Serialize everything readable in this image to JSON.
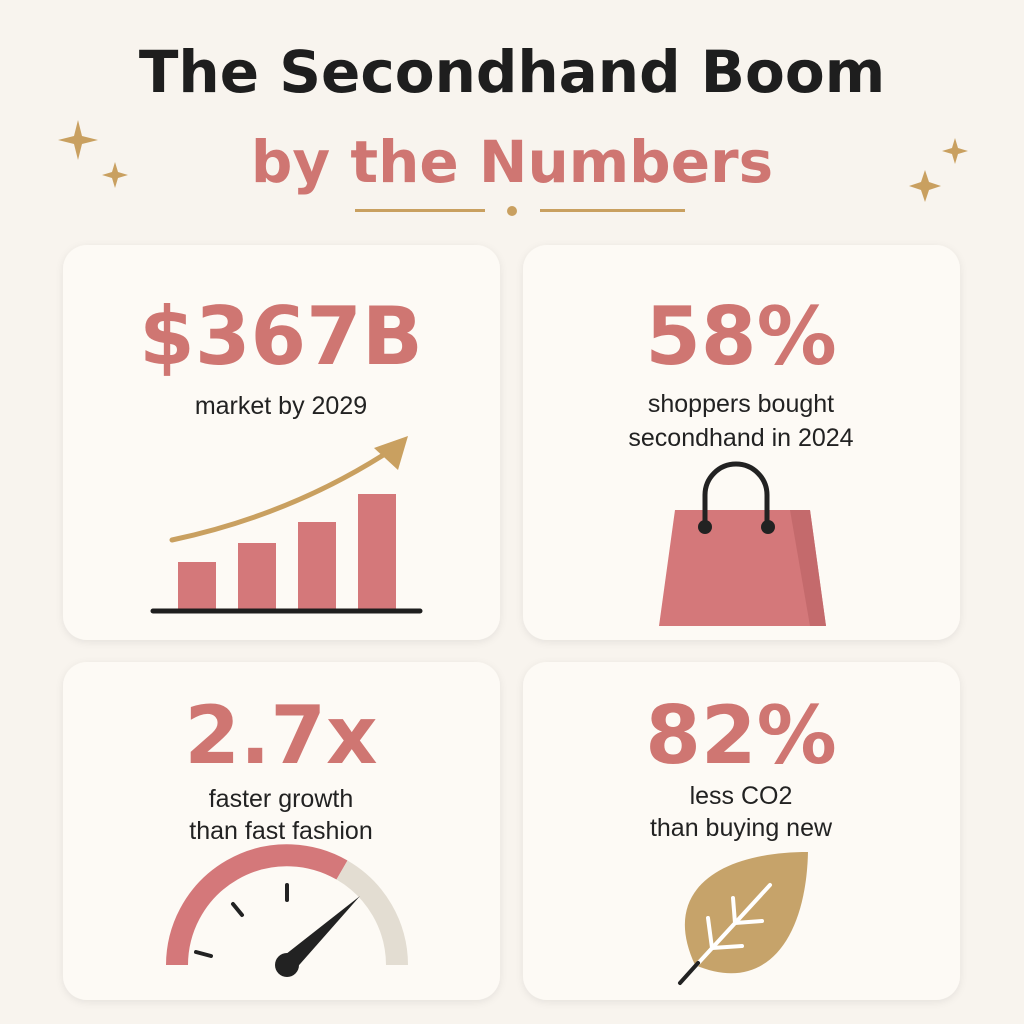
{
  "header": {
    "title_line1": "The Secondhand Boom",
    "title_line2": "by the Numbers"
  },
  "cards": [
    {
      "stat": "$367B",
      "caption": [
        "market by 2029"
      ]
    },
    {
      "stat": "58%",
      "caption": [
        "shoppers bought",
        "secondhand in 2024"
      ]
    },
    {
      "stat": "2.7x",
      "caption": [
        "faster growth",
        "than fast fashion"
      ]
    },
    {
      "stat": "82%",
      "caption": [
        "less CO2",
        "than buying new"
      ]
    }
  ]
}
